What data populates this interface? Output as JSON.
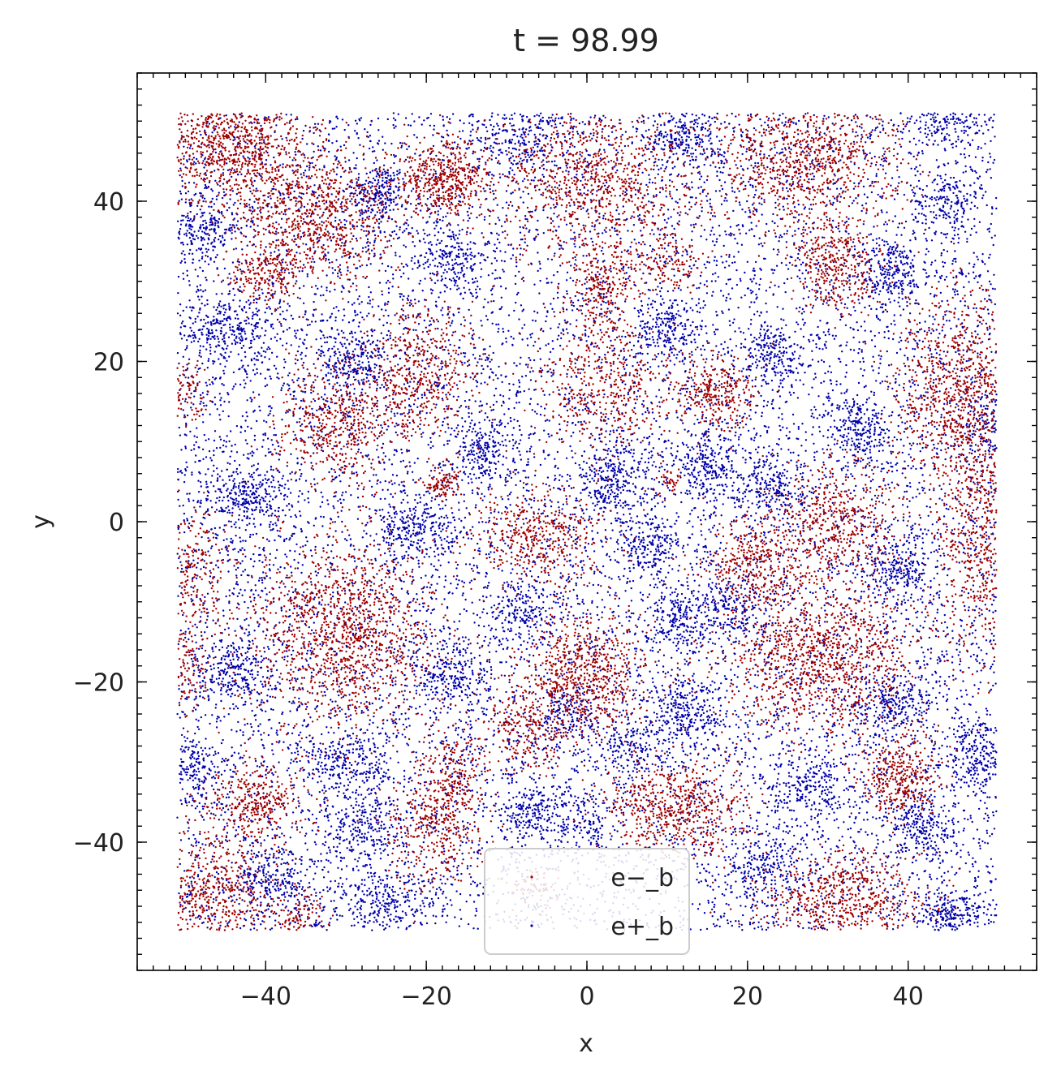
{
  "chart_data": {
    "type": "scatter",
    "title": "t = 98.99",
    "xlabel": "x",
    "ylabel": "y",
    "xlim": [
      -56,
      56
    ],
    "ylim": [
      -56,
      56
    ],
    "domain": [
      -51,
      51
    ],
    "x_ticks": [
      -40,
      -20,
      0,
      20,
      40
    ],
    "y_ticks": [
      -40,
      -20,
      0,
      20,
      40
    ],
    "x_tick_labels": [
      "−40",
      "−20",
      "0",
      "20",
      "40"
    ],
    "y_tick_labels": [
      "−40",
      "−20",
      "0",
      "20",
      "40"
    ],
    "grid": false,
    "legend_position": "bottom-center",
    "series": [
      {
        "name": "e−_b",
        "color": "#a00000",
        "clusters": [
          {
            "x": -44,
            "y": 47,
            "sx": 5,
            "sy": 3.5,
            "n": 900
          },
          {
            "x": -34,
            "y": 38,
            "sx": 5,
            "sy": 4,
            "n": 800
          },
          {
            "x": -18,
            "y": 43,
            "sx": 3,
            "sy": 2.5,
            "n": 500
          },
          {
            "x": 1,
            "y": 42,
            "sx": 6,
            "sy": 5,
            "n": 900
          },
          {
            "x": 27,
            "y": 45,
            "sx": 6,
            "sy": 4.5,
            "n": 900
          },
          {
            "x": 31,
            "y": 32,
            "sx": 2.5,
            "sy": 3,
            "n": 350
          },
          {
            "x": -40,
            "y": 31,
            "sx": 2.5,
            "sy": 2,
            "n": 200
          },
          {
            "x": 2,
            "y": 29,
            "sx": 2,
            "sy": 3,
            "n": 250
          },
          {
            "x": 10,
            "y": 32,
            "sx": 2,
            "sy": 1.5,
            "n": 120
          },
          {
            "x": -21,
            "y": 19,
            "sx": 4,
            "sy": 4,
            "n": 500
          },
          {
            "x": -31,
            "y": 12,
            "sx": 4,
            "sy": 4,
            "n": 500
          },
          {
            "x": 2,
            "y": 17,
            "sx": 4,
            "sy": 4,
            "n": 450
          },
          {
            "x": 16,
            "y": 16,
            "sx": 2.5,
            "sy": 2.5,
            "n": 300
          },
          {
            "x": 46,
            "y": 17,
            "sx": 4,
            "sy": 6,
            "n": 800
          },
          {
            "x": -50,
            "y": 16,
            "sx": 1.5,
            "sy": 2,
            "n": 100
          },
          {
            "x": -18,
            "y": 5,
            "sx": 1.2,
            "sy": 1.2,
            "n": 100
          },
          {
            "x": 10,
            "y": 5,
            "sx": 1,
            "sy": 1,
            "n": 40
          },
          {
            "x": -6,
            "y": -2,
            "sx": 4,
            "sy": 3,
            "n": 450
          },
          {
            "x": 31,
            "y": 0,
            "sx": 4,
            "sy": 4,
            "n": 500
          },
          {
            "x": 21,
            "y": -5,
            "sx": 3,
            "sy": 3,
            "n": 350
          },
          {
            "x": 49,
            "y": -2,
            "sx": 3,
            "sy": 8,
            "n": 700
          },
          {
            "x": -49,
            "y": -7,
            "sx": 2.5,
            "sy": 4,
            "n": 250
          },
          {
            "x": -30,
            "y": -14,
            "sx": 6,
            "sy": 6,
            "n": 1300
          },
          {
            "x": -50,
            "y": -18,
            "sx": 1.5,
            "sy": 3,
            "n": 120
          },
          {
            "x": 29,
            "y": -17,
            "sx": 6,
            "sy": 5,
            "n": 1100
          },
          {
            "x": 0,
            "y": -19,
            "sx": 4,
            "sy": 4,
            "n": 700
          },
          {
            "x": -8,
            "y": -26,
            "sx": 3,
            "sy": 3,
            "n": 250
          },
          {
            "x": -17,
            "y": -32,
            "sx": 2,
            "sy": 3,
            "n": 200
          },
          {
            "x": 39,
            "y": -32,
            "sx": 2.5,
            "sy": 2.5,
            "n": 350
          },
          {
            "x": -41,
            "y": -35,
            "sx": 3,
            "sy": 2.5,
            "n": 350
          },
          {
            "x": 11,
            "y": -36,
            "sx": 4.5,
            "sy": 3,
            "n": 600
          },
          {
            "x": -19,
            "y": -38,
            "sx": 3,
            "sy": 3.5,
            "n": 350
          },
          {
            "x": -47,
            "y": -46,
            "sx": 4,
            "sy": 3.5,
            "n": 550
          },
          {
            "x": 32,
            "y": -47,
            "sx": 5,
            "sy": 3,
            "n": 600
          },
          {
            "x": -36,
            "y": -49,
            "sx": 2,
            "sy": 1.5,
            "n": 100
          },
          {
            "x": -6,
            "y": -46,
            "sx": 2,
            "sy": 1.5,
            "n": 80
          }
        ]
      },
      {
        "name": "e+_b",
        "color": "#0000aa",
        "clusters": [
          {
            "x": -26,
            "y": 41,
            "sx": 1.8,
            "sy": 1.8,
            "n": 180
          },
          {
            "x": 12,
            "y": 48,
            "sx": 2,
            "sy": 2,
            "n": 200
          },
          {
            "x": -8,
            "y": 48,
            "sx": 3,
            "sy": 2,
            "n": 200
          },
          {
            "x": 45,
            "y": 50,
            "sx": 2.5,
            "sy": 1.5,
            "n": 150
          },
          {
            "x": -17,
            "y": 33,
            "sx": 2.5,
            "sy": 2.5,
            "n": 200
          },
          {
            "x": 38,
            "y": 31,
            "sx": 2,
            "sy": 2,
            "n": 200
          },
          {
            "x": 45,
            "y": 40,
            "sx": 2,
            "sy": 2,
            "n": 150
          },
          {
            "x": -48,
            "y": 37,
            "sx": 2.5,
            "sy": 2,
            "n": 200
          },
          {
            "x": -45,
            "y": 24,
            "sx": 3,
            "sy": 2,
            "n": 250
          },
          {
            "x": -29,
            "y": 20,
            "sx": 2,
            "sy": 2,
            "n": 200
          },
          {
            "x": 23,
            "y": 21,
            "sx": 2,
            "sy": 2,
            "n": 180
          },
          {
            "x": 10,
            "y": 24,
            "sx": 2,
            "sy": 2,
            "n": 180
          },
          {
            "x": -13,
            "y": 9,
            "sx": 2,
            "sy": 2,
            "n": 200
          },
          {
            "x": 3,
            "y": 5,
            "sx": 2.5,
            "sy": 2.5,
            "n": 250
          },
          {
            "x": 15,
            "y": 7,
            "sx": 2,
            "sy": 2,
            "n": 220
          },
          {
            "x": 34,
            "y": 11,
            "sx": 2,
            "sy": 2,
            "n": 200
          },
          {
            "x": 50,
            "y": 12,
            "sx": 1.5,
            "sy": 3,
            "n": 150
          },
          {
            "x": -42,
            "y": 3,
            "sx": 2.5,
            "sy": 2,
            "n": 250
          },
          {
            "x": 23,
            "y": 4,
            "sx": 2,
            "sy": 2,
            "n": 200
          },
          {
            "x": -21,
            "y": -1,
            "sx": 3,
            "sy": 2,
            "n": 250
          },
          {
            "x": 8,
            "y": -3,
            "sx": 2,
            "sy": 2,
            "n": 180
          },
          {
            "x": 39,
            "y": -6,
            "sx": 2,
            "sy": 2,
            "n": 200
          },
          {
            "x": 18,
            "y": -11,
            "sx": 2.5,
            "sy": 2,
            "n": 180
          },
          {
            "x": -44,
            "y": -19,
            "sx": 2.5,
            "sy": 2.5,
            "n": 250
          },
          {
            "x": -17,
            "y": -19,
            "sx": 2.5,
            "sy": 2.5,
            "n": 220
          },
          {
            "x": -8,
            "y": -11,
            "sx": 2,
            "sy": 2,
            "n": 180
          },
          {
            "x": 11,
            "y": -12,
            "sx": 2,
            "sy": 2,
            "n": 180
          },
          {
            "x": 12,
            "y": -24,
            "sx": 2.5,
            "sy": 2.5,
            "n": 250
          },
          {
            "x": 38,
            "y": -23,
            "sx": 2.5,
            "sy": 2,
            "n": 220
          },
          {
            "x": -2,
            "y": -24,
            "sx": 2,
            "sy": 2,
            "n": 150
          },
          {
            "x": -30,
            "y": -30,
            "sx": 3,
            "sy": 2,
            "n": 200
          },
          {
            "x": -49,
            "y": -31,
            "sx": 1.5,
            "sy": 2.5,
            "n": 150
          },
          {
            "x": 5,
            "y": -28,
            "sx": 2,
            "sy": 2,
            "n": 150
          },
          {
            "x": 49,
            "y": -29,
            "sx": 2,
            "sy": 2.5,
            "n": 200
          },
          {
            "x": 28,
            "y": -33,
            "sx": 2.5,
            "sy": 2,
            "n": 200
          },
          {
            "x": -7,
            "y": -36,
            "sx": 2,
            "sy": 2,
            "n": 200
          },
          {
            "x": -28,
            "y": -38,
            "sx": 2.5,
            "sy": 2.5,
            "n": 200
          },
          {
            "x": 42,
            "y": -38,
            "sx": 2.5,
            "sy": 2,
            "n": 200
          },
          {
            "x": -39,
            "y": -45,
            "sx": 2.5,
            "sy": 2,
            "n": 220
          },
          {
            "x": 45,
            "y": -49,
            "sx": 2,
            "sy": 1.5,
            "n": 200
          },
          {
            "x": 22,
            "y": -43,
            "sx": 2.5,
            "sy": 2,
            "n": 180
          },
          {
            "x": -25,
            "y": -48,
            "sx": 3,
            "sy": 2,
            "n": 200
          },
          {
            "x": 0,
            "y": -38,
            "sx": 2,
            "sy": 2,
            "n": 120
          }
        ],
        "background_n": 13000
      }
    ]
  }
}
